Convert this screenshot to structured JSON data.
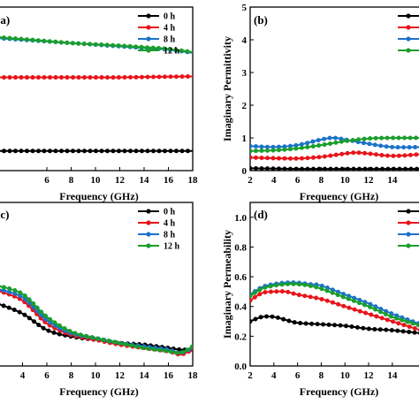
{
  "chart_data": [
    {
      "type": "line",
      "panel_label": "(a)",
      "xlabel": "Frequency (GHz)",
      "ylabel": "",
      "xlim": [
        2,
        18
      ],
      "ylim": [
        0,
        5
      ],
      "xticks": [
        "6",
        "8",
        "10",
        "12",
        "14",
        "16",
        "18"
      ],
      "yticks": [],
      "legend_position": "top-right",
      "series": [
        {
          "name": "0 h",
          "color": "#000000",
          "x": [
            2,
            4,
            6,
            8,
            10,
            12,
            14,
            16,
            18
          ],
          "y": [
            0.6,
            0.6,
            0.6,
            0.6,
            0.6,
            0.6,
            0.6,
            0.6,
            0.6
          ]
        },
        {
          "name": "4 h",
          "color": "#e8141b",
          "x": [
            2,
            4,
            6,
            8,
            10,
            12,
            14,
            16,
            18
          ],
          "y": [
            2.85,
            2.85,
            2.85,
            2.85,
            2.85,
            2.85,
            2.86,
            2.87,
            2.88
          ]
        },
        {
          "name": "8 h",
          "color": "#1a73c9",
          "x": [
            2,
            4,
            6,
            8,
            10,
            12,
            14,
            16,
            18
          ],
          "y": [
            4.05,
            4.0,
            3.95,
            3.9,
            3.85,
            3.8,
            3.75,
            3.7,
            3.6
          ]
        },
        {
          "name": "12 h",
          "color": "#1a9e2c",
          "x": [
            2,
            4,
            6,
            8,
            10,
            12,
            14,
            16,
            18
          ],
          "y": [
            4.08,
            4.02,
            3.96,
            3.9,
            3.86,
            3.82,
            3.77,
            3.72,
            3.62
          ]
        }
      ]
    },
    {
      "type": "line",
      "panel_label": "(b)",
      "xlabel": "Frequency (GHz)",
      "ylabel": "Imaginary Permittivity",
      "xlim": [
        2,
        16.4
      ],
      "ylim": [
        0,
        5
      ],
      "xticks": [
        "2",
        "4",
        "6",
        "8",
        "10",
        "12",
        "14"
      ],
      "yticks": [
        "0",
        "1",
        "2",
        "3",
        "4",
        "5"
      ],
      "legend_position": "top-right",
      "series": [
        {
          "name": "",
          "color": "#000000",
          "x": [
            2,
            4,
            6,
            8,
            10,
            12,
            14,
            16.4
          ],
          "y": [
            0.07,
            0.06,
            0.05,
            0.05,
            0.05,
            0.05,
            0.05,
            0.05
          ]
        },
        {
          "name": "",
          "color": "#e8141b",
          "x": [
            2,
            4,
            6,
            8,
            10,
            11,
            12,
            14,
            16.4
          ],
          "y": [
            0.4,
            0.38,
            0.37,
            0.42,
            0.52,
            0.55,
            0.52,
            0.45,
            0.5
          ]
        },
        {
          "name": "",
          "color": "#1a73c9",
          "x": [
            2,
            4,
            6,
            8,
            9,
            10,
            12,
            14,
            16.4
          ],
          "y": [
            0.75,
            0.72,
            0.78,
            0.95,
            1.0,
            0.95,
            0.82,
            0.72,
            0.72
          ]
        },
        {
          "name": "",
          "color": "#1a9e2c",
          "x": [
            2,
            4,
            6,
            8,
            10,
            12,
            14,
            16.4
          ],
          "y": [
            0.6,
            0.62,
            0.68,
            0.78,
            0.9,
            0.98,
            1.0,
            1.0
          ]
        }
      ]
    },
    {
      "type": "line",
      "panel_label": "(c)",
      "xlabel": "Frequency (GHz)",
      "ylabel": "",
      "xlim": [
        2,
        18
      ],
      "ylim": [
        0,
        1
      ],
      "xticks": [
        "4",
        "6",
        "8",
        "10",
        "12",
        "14",
        "16",
        "18"
      ],
      "yticks": [],
      "legend_position": "top-right",
      "series": [
        {
          "name": "0 h",
          "color": "#000000",
          "x": [
            2,
            4,
            6,
            8,
            10,
            12,
            14,
            16,
            17,
            18
          ],
          "y": [
            0.38,
            0.32,
            0.22,
            0.18,
            0.16,
            0.14,
            0.13,
            0.11,
            0.1,
            0.1
          ]
        },
        {
          "name": "4 h",
          "color": "#e8141b",
          "x": [
            2,
            4,
            6,
            8,
            10,
            12,
            14,
            16,
            17,
            18
          ],
          "y": [
            0.46,
            0.4,
            0.26,
            0.19,
            0.16,
            0.13,
            0.11,
            0.09,
            0.07,
            0.1
          ]
        },
        {
          "name": "8 h",
          "color": "#1a73c9",
          "x": [
            2,
            4,
            6,
            8,
            10,
            12,
            14,
            16,
            17,
            18
          ],
          "y": [
            0.47,
            0.42,
            0.28,
            0.2,
            0.17,
            0.14,
            0.12,
            0.1,
            0.08,
            0.11
          ]
        },
        {
          "name": "12 h",
          "color": "#1a9e2c",
          "x": [
            2,
            4,
            6,
            8,
            10,
            12,
            14,
            16,
            17,
            18
          ],
          "y": [
            0.49,
            0.44,
            0.3,
            0.21,
            0.17,
            0.14,
            0.11,
            0.09,
            0.08,
            0.12
          ]
        }
      ]
    },
    {
      "type": "line",
      "panel_label": "(d)",
      "xlabel": "Frequency (GHz)",
      "ylabel": "Imaginary Permeability",
      "xlim": [
        2,
        16.4
      ],
      "ylim": [
        0,
        1.1
      ],
      "xticks": [
        "2",
        "4",
        "6",
        "8",
        "10",
        "12",
        "14"
      ],
      "yticks": [
        "0.0",
        "0.2",
        "0.4",
        "0.6",
        "0.8",
        "1.0"
      ],
      "legend_position": "top-right",
      "series": [
        {
          "name": "",
          "color": "#000000",
          "x": [
            2,
            3,
            4,
            5,
            6,
            8,
            10,
            12,
            14,
            16.4
          ],
          "y": [
            0.3,
            0.33,
            0.33,
            0.31,
            0.29,
            0.28,
            0.27,
            0.25,
            0.24,
            0.22
          ]
        },
        {
          "name": "",
          "color": "#e8141b",
          "x": [
            2,
            3,
            4,
            5,
            6,
            8,
            10,
            12,
            14,
            16.4
          ],
          "y": [
            0.44,
            0.49,
            0.5,
            0.5,
            0.48,
            0.45,
            0.4,
            0.35,
            0.3,
            0.24
          ]
        },
        {
          "name": "",
          "color": "#1a73c9",
          "x": [
            2,
            3,
            4,
            5,
            6,
            7,
            8,
            10,
            12,
            14,
            16.4
          ],
          "y": [
            0.48,
            0.53,
            0.55,
            0.56,
            0.56,
            0.55,
            0.54,
            0.48,
            0.42,
            0.35,
            0.28
          ]
        },
        {
          "name": "",
          "color": "#1a9e2c",
          "x": [
            2,
            3,
            4,
            5,
            6,
            7,
            8,
            10,
            12,
            14,
            16.4
          ],
          "y": [
            0.47,
            0.52,
            0.54,
            0.55,
            0.55,
            0.54,
            0.52,
            0.46,
            0.4,
            0.33,
            0.27
          ]
        }
      ]
    }
  ]
}
